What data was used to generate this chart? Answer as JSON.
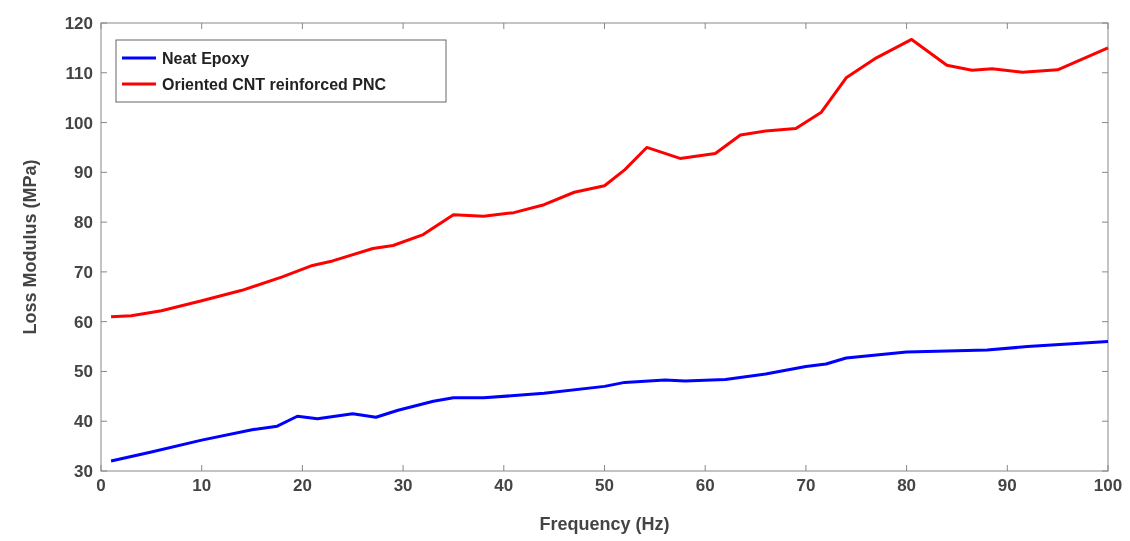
{
  "chart_data": {
    "type": "line",
    "xlabel": "Frequency (Hz)",
    "ylabel": "Loss Modulus (MPa)",
    "xlim": [
      0,
      100
    ],
    "xticks": [
      0,
      10,
      20,
      30,
      40,
      50,
      60,
      70,
      80,
      90,
      100
    ],
    "ylim": [
      30,
      120
    ],
    "yticks": [
      30,
      40,
      50,
      60,
      70,
      80,
      90,
      100,
      110,
      120
    ],
    "legend": "top left",
    "grid": false,
    "series": [
      {
        "name": "Neat Epoxy",
        "color": "#0000ff",
        "x": [
          1,
          5,
          10,
          15,
          17.5,
          19.5,
          21.5,
          25,
          27.3,
          29.5,
          33,
          35,
          38,
          44,
          50,
          52,
          56,
          58,
          62,
          66,
          70,
          72,
          74,
          80,
          88,
          92,
          100
        ],
        "values": [
          32,
          33.8,
          36.2,
          38.3,
          39,
          41,
          40.5,
          41.5,
          40.8,
          42.2,
          44,
          44.7,
          44.7,
          45.6,
          47,
          47.8,
          48.3,
          48.1,
          48.4,
          49.5,
          51,
          51.5,
          52.7,
          53.9,
          54.3,
          55,
          56
        ]
      },
      {
        "name": "Oriented CNT reinforced PNC",
        "color": "#ff0000",
        "x": [
          1,
          3,
          6,
          10,
          14,
          18,
          21,
          23,
          27,
          29,
          32,
          35,
          38,
          41,
          44,
          47,
          50,
          52,
          54.2,
          57.5,
          61,
          63.5,
          66,
          69,
          71.5,
          74,
          77,
          80.5,
          84,
          86.5,
          88.5,
          91.5,
          95,
          100
        ],
        "values": [
          61,
          61.2,
          62.2,
          64.2,
          66.3,
          69,
          71.3,
          72.2,
          74.7,
          75.3,
          77.5,
          81.5,
          81.2,
          81.9,
          83.5,
          86,
          87.3,
          90.5,
          95,
          92.8,
          93.8,
          97.5,
          98.3,
          98.8,
          102,
          109,
          113,
          116.7,
          111.5,
          110.5,
          110.8,
          110.1,
          110.6,
          115
        ]
      }
    ]
  }
}
